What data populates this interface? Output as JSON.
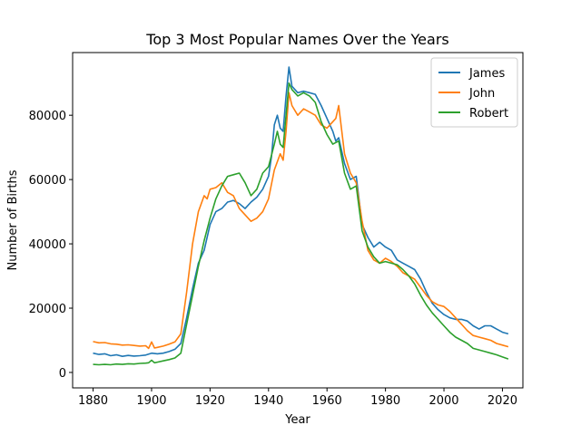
{
  "chart_data": {
    "type": "line",
    "title": "Top 3 Most Popular Names Over the Years",
    "xlabel": "Year",
    "ylabel": "Number of Births",
    "xlim": [
      1873,
      2027
    ],
    "ylim": [
      -4800,
      99500
    ],
    "xticks": [
      1880,
      1900,
      1920,
      1940,
      1960,
      1980,
      2000,
      2020
    ],
    "yticks": [
      0,
      20000,
      40000,
      60000,
      80000
    ],
    "grid": false,
    "legend_position": "top-right",
    "series": [
      {
        "name": "James",
        "color": "#1f77b4",
        "points": [
          [
            1880,
            6000
          ],
          [
            1882,
            5600
          ],
          [
            1884,
            5800
          ],
          [
            1886,
            5200
          ],
          [
            1888,
            5500
          ],
          [
            1890,
            5000
          ],
          [
            1892,
            5300
          ],
          [
            1894,
            5100
          ],
          [
            1896,
            5200
          ],
          [
            1898,
            5400
          ],
          [
            1900,
            6000
          ],
          [
            1902,
            5800
          ],
          [
            1904,
            6000
          ],
          [
            1906,
            6500
          ],
          [
            1908,
            7200
          ],
          [
            1910,
            9000
          ],
          [
            1912,
            17000
          ],
          [
            1914,
            26000
          ],
          [
            1916,
            34000
          ],
          [
            1918,
            38000
          ],
          [
            1920,
            46000
          ],
          [
            1922,
            50000
          ],
          [
            1924,
            51000
          ],
          [
            1926,
            53000
          ],
          [
            1928,
            53500
          ],
          [
            1930,
            52500
          ],
          [
            1932,
            51000
          ],
          [
            1934,
            53000
          ],
          [
            1936,
            54500
          ],
          [
            1938,
            57000
          ],
          [
            1940,
            61000
          ],
          [
            1941,
            67000
          ],
          [
            1942,
            77000
          ],
          [
            1943,
            80000
          ],
          [
            1944,
            76000
          ],
          [
            1945,
            75000
          ],
          [
            1946,
            86000
          ],
          [
            1947,
            95000
          ],
          [
            1948,
            89000
          ],
          [
            1950,
            87000
          ],
          [
            1952,
            87500
          ],
          [
            1954,
            87000
          ],
          [
            1956,
            86500
          ],
          [
            1958,
            83000
          ],
          [
            1960,
            79000
          ],
          [
            1962,
            75000
          ],
          [
            1963,
            72000
          ],
          [
            1964,
            73000
          ],
          [
            1966,
            65000
          ],
          [
            1968,
            60000
          ],
          [
            1970,
            61000
          ],
          [
            1972,
            46000
          ],
          [
            1974,
            42000
          ],
          [
            1976,
            39000
          ],
          [
            1978,
            40500
          ],
          [
            1980,
            39000
          ],
          [
            1982,
            38000
          ],
          [
            1984,
            35000
          ],
          [
            1986,
            34000
          ],
          [
            1988,
            33000
          ],
          [
            1990,
            32000
          ],
          [
            1992,
            29000
          ],
          [
            1994,
            25000
          ],
          [
            1996,
            21500
          ],
          [
            1998,
            19500
          ],
          [
            2000,
            18000
          ],
          [
            2002,
            17000
          ],
          [
            2004,
            16500
          ],
          [
            2006,
            16500
          ],
          [
            2008,
            16000
          ],
          [
            2010,
            14500
          ],
          [
            2012,
            13500
          ],
          [
            2014,
            14500
          ],
          [
            2016,
            14500
          ],
          [
            2018,
            13500
          ],
          [
            2020,
            12500
          ],
          [
            2022,
            12000
          ]
        ]
      },
      {
        "name": "John",
        "color": "#ff7f0e",
        "points": [
          [
            1880,
            9600
          ],
          [
            1882,
            9200
          ],
          [
            1884,
            9300
          ],
          [
            1886,
            8900
          ],
          [
            1888,
            8800
          ],
          [
            1890,
            8500
          ],
          [
            1892,
            8600
          ],
          [
            1894,
            8400
          ],
          [
            1896,
            8200
          ],
          [
            1898,
            8300
          ],
          [
            1899,
            7500
          ],
          [
            1900,
            9500
          ],
          [
            1901,
            7600
          ],
          [
            1902,
            7800
          ],
          [
            1904,
            8200
          ],
          [
            1906,
            8800
          ],
          [
            1908,
            9500
          ],
          [
            1910,
            12000
          ],
          [
            1912,
            25000
          ],
          [
            1914,
            40000
          ],
          [
            1916,
            50000
          ],
          [
            1918,
            55000
          ],
          [
            1919,
            54000
          ],
          [
            1920,
            57000
          ],
          [
            1922,
            57500
          ],
          [
            1924,
            59000
          ],
          [
            1926,
            56000
          ],
          [
            1928,
            55000
          ],
          [
            1930,
            51000
          ],
          [
            1932,
            49000
          ],
          [
            1934,
            47000
          ],
          [
            1936,
            48000
          ],
          [
            1938,
            50000
          ],
          [
            1940,
            54000
          ],
          [
            1942,
            63000
          ],
          [
            1944,
            68000
          ],
          [
            1945,
            66000
          ],
          [
            1946,
            75000
          ],
          [
            1947,
            87000
          ],
          [
            1948,
            83000
          ],
          [
            1950,
            80000
          ],
          [
            1952,
            82000
          ],
          [
            1954,
            81000
          ],
          [
            1956,
            80000
          ],
          [
            1958,
            77000
          ],
          [
            1960,
            76000
          ],
          [
            1962,
            78000
          ],
          [
            1963,
            79000
          ],
          [
            1964,
            83000
          ],
          [
            1966,
            68000
          ],
          [
            1968,
            62000
          ],
          [
            1970,
            59000
          ],
          [
            1972,
            47000
          ],
          [
            1974,
            38000
          ],
          [
            1976,
            35000
          ],
          [
            1978,
            34000
          ],
          [
            1980,
            35500
          ],
          [
            1982,
            34500
          ],
          [
            1984,
            33000
          ],
          [
            1986,
            31000
          ],
          [
            1988,
            30000
          ],
          [
            1990,
            29000
          ],
          [
            1992,
            26500
          ],
          [
            1994,
            24000
          ],
          [
            1996,
            22000
          ],
          [
            1998,
            21000
          ],
          [
            2000,
            20500
          ],
          [
            2002,
            19000
          ],
          [
            2004,
            17000
          ],
          [
            2006,
            15000
          ],
          [
            2008,
            13000
          ],
          [
            2010,
            11500
          ],
          [
            2012,
            11000
          ],
          [
            2014,
            10500
          ],
          [
            2016,
            10000
          ],
          [
            2018,
            9000
          ],
          [
            2020,
            8500
          ],
          [
            2022,
            8000
          ]
        ]
      },
      {
        "name": "Robert",
        "color": "#2ca02c",
        "points": [
          [
            1880,
            2500
          ],
          [
            1882,
            2400
          ],
          [
            1884,
            2500
          ],
          [
            1886,
            2400
          ],
          [
            1888,
            2600
          ],
          [
            1890,
            2500
          ],
          [
            1892,
            2700
          ],
          [
            1894,
            2600
          ],
          [
            1896,
            2800
          ],
          [
            1898,
            2900
          ],
          [
            1899,
            3000
          ],
          [
            1900,
            3800
          ],
          [
            1901,
            3000
          ],
          [
            1902,
            3200
          ],
          [
            1904,
            3600
          ],
          [
            1906,
            4000
          ],
          [
            1908,
            4500
          ],
          [
            1910,
            6000
          ],
          [
            1912,
            15000
          ],
          [
            1914,
            24000
          ],
          [
            1916,
            33000
          ],
          [
            1918,
            41000
          ],
          [
            1920,
            48000
          ],
          [
            1922,
            54000
          ],
          [
            1924,
            58000
          ],
          [
            1926,
            61000
          ],
          [
            1928,
            61500
          ],
          [
            1930,
            62000
          ],
          [
            1932,
            59000
          ],
          [
            1934,
            55000
          ],
          [
            1936,
            57000
          ],
          [
            1938,
            62000
          ],
          [
            1940,
            64000
          ],
          [
            1942,
            71000
          ],
          [
            1943,
            75000
          ],
          [
            1944,
            71000
          ],
          [
            1945,
            70000
          ],
          [
            1946,
            80000
          ],
          [
            1947,
            90000
          ],
          [
            1948,
            88000
          ],
          [
            1950,
            86000
          ],
          [
            1952,
            87000
          ],
          [
            1954,
            86000
          ],
          [
            1956,
            84000
          ],
          [
            1958,
            78000
          ],
          [
            1960,
            74000
          ],
          [
            1962,
            71000
          ],
          [
            1964,
            72000
          ],
          [
            1966,
            62000
          ],
          [
            1968,
            57000
          ],
          [
            1970,
            58000
          ],
          [
            1972,
            44000
          ],
          [
            1974,
            39000
          ],
          [
            1976,
            36000
          ],
          [
            1978,
            34000
          ],
          [
            1980,
            34500
          ],
          [
            1982,
            34000
          ],
          [
            1984,
            33500
          ],
          [
            1986,
            32000
          ],
          [
            1988,
            30000
          ],
          [
            1990,
            27500
          ],
          [
            1992,
            24000
          ],
          [
            1994,
            21000
          ],
          [
            1996,
            18500
          ],
          [
            1998,
            16500
          ],
          [
            2000,
            14500
          ],
          [
            2002,
            12500
          ],
          [
            2004,
            11000
          ],
          [
            2006,
            10000
          ],
          [
            2008,
            9000
          ],
          [
            2010,
            7500
          ],
          [
            2012,
            7000
          ],
          [
            2014,
            6500
          ],
          [
            2016,
            6000
          ],
          [
            2018,
            5500
          ],
          [
            2020,
            4800
          ],
          [
            2022,
            4200
          ]
        ]
      }
    ]
  }
}
